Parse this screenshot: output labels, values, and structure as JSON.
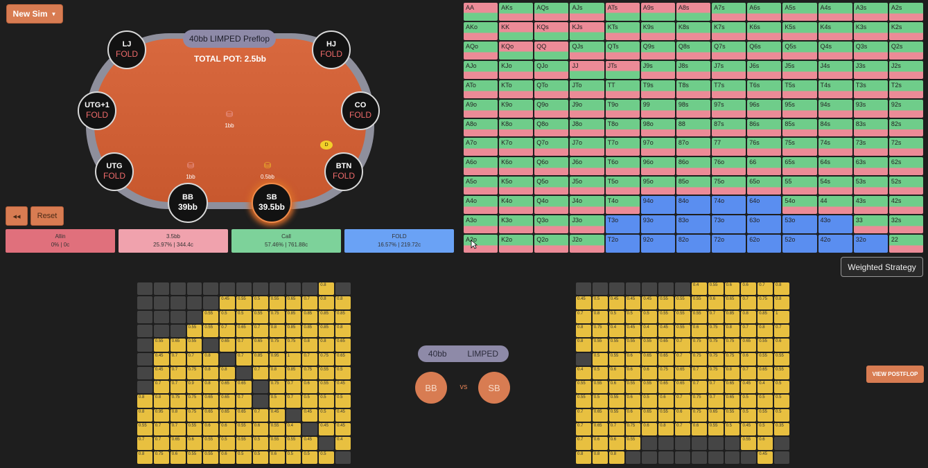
{
  "toolbar": {
    "new_sim_label": "New Sim",
    "rewind_label": "◂◂",
    "reset_label": "Reset"
  },
  "table": {
    "label": "40bb LIMPED Preflop",
    "pot": "TOTAL POT: 2.5bb",
    "seats": [
      {
        "id": "lj",
        "pos": "LJ",
        "action": "FOLD"
      },
      {
        "id": "hj",
        "pos": "HJ",
        "action": "FOLD"
      },
      {
        "id": "utg1",
        "pos": "UTG+1",
        "action": "FOLD"
      },
      {
        "id": "co",
        "pos": "CO",
        "action": "FOLD"
      },
      {
        "id": "utg",
        "pos": "UTG",
        "action": "FOLD"
      },
      {
        "id": "btn",
        "pos": "BTN",
        "action": "FOLD"
      },
      {
        "id": "bb",
        "pos": "BB",
        "stack": "39bb"
      },
      {
        "id": "sb",
        "pos": "SB",
        "stack": "39.5bb"
      }
    ],
    "chips": {
      "center": "1bb",
      "bb": "1bb",
      "sb": "0.5bb"
    },
    "dealer": "D"
  },
  "actions": [
    {
      "id": "allin",
      "label": "Allin",
      "stats": "0% | 0c",
      "color": "#e0707c"
    },
    {
      "id": "raise",
      "label": "3.5bb",
      "stats": "25.97% | 344.4c",
      "color": "#f0a2ad"
    },
    {
      "id": "call",
      "label": "Call",
      "stats": "57.46% | 761.88c",
      "color": "#7dd29a"
    },
    {
      "id": "fold",
      "label": "FOLD",
      "stats": "16.57% | 219.72c",
      "color": "#6aa2f5"
    }
  ],
  "colors": {
    "raise": "#ec8b97",
    "call": "#6fcd8a",
    "fold": "#5a8ef0"
  },
  "range_grid": {
    "rows": [
      [
        "AA",
        "AKs",
        "AQs",
        "AJs",
        "ATs",
        "A9s",
        "A8s",
        "A7s",
        "A6s",
        "A5s",
        "A4s",
        "A3s",
        "A2s"
      ],
      [
        "AKo",
        "KK",
        "KQs",
        "KJs",
        "KTs",
        "K9s",
        "K8s",
        "K7s",
        "K6s",
        "K5s",
        "K4s",
        "K3s",
        "K2s"
      ],
      [
        "AQo",
        "KQo",
        "QQ",
        "QJs",
        "QTs",
        "Q9s",
        "Q8s",
        "Q7s",
        "Q6s",
        "Q5s",
        "Q4s",
        "Q3s",
        "Q2s"
      ],
      [
        "AJo",
        "KJo",
        "QJo",
        "JJ",
        "JTs",
        "J9s",
        "J8s",
        "J7s",
        "J6s",
        "J5s",
        "J4s",
        "J3s",
        "J2s"
      ],
      [
        "ATo",
        "KTo",
        "QTo",
        "JTo",
        "TT",
        "T9s",
        "T8s",
        "T7s",
        "T6s",
        "T5s",
        "T4s",
        "T3s",
        "T2s"
      ],
      [
        "A9o",
        "K9o",
        "Q9o",
        "J9o",
        "T9o",
        "99",
        "98s",
        "97s",
        "96s",
        "95s",
        "94s",
        "93s",
        "92s"
      ],
      [
        "A8o",
        "K8o",
        "Q8o",
        "J8o",
        "T8o",
        "98o",
        "88",
        "87s",
        "86s",
        "85s",
        "84s",
        "83s",
        "82s"
      ],
      [
        "A7o",
        "K7o",
        "Q7o",
        "J7o",
        "T7o",
        "97o",
        "87o",
        "77",
        "76s",
        "75s",
        "74s",
        "73s",
        "72s"
      ],
      [
        "A6o",
        "K6o",
        "Q6o",
        "J6o",
        "T6o",
        "96o",
        "86o",
        "76o",
        "66",
        "65s",
        "64s",
        "63s",
        "62s"
      ],
      [
        "A5o",
        "K5o",
        "Q5o",
        "J5o",
        "T5o",
        "95o",
        "85o",
        "75o",
        "65o",
        "55",
        "54s",
        "53s",
        "52s"
      ],
      [
        "A4o",
        "K4o",
        "Q4o",
        "J4o",
        "T4o",
        "94o",
        "84o",
        "74o",
        "64o",
        "54o",
        "44",
        "43s",
        "42s"
      ],
      [
        "A3o",
        "K3o",
        "Q3o",
        "J3o",
        "T3o",
        "93o",
        "83o",
        "73o",
        "63o",
        "53o",
        "43o",
        "33",
        "32s"
      ],
      [
        "A2o",
        "K2o",
        "Q2o",
        "J2o",
        "T2o",
        "92o",
        "82o",
        "72o",
        "62o",
        "52o",
        "42o",
        "32o",
        "22"
      ]
    ],
    "styles": [
      [
        "R",
        "M",
        "M",
        "M",
        "R",
        "R",
        "R",
        "M",
        "M",
        "M",
        "M",
        "M",
        "M"
      ],
      [
        "M",
        "R",
        "R",
        "R",
        "M",
        "M",
        "M",
        "M",
        "M",
        "M",
        "M",
        "M",
        "M"
      ],
      [
        "M",
        "R",
        "R",
        "M",
        "M",
        "M",
        "M",
        "M",
        "M",
        "M",
        "M",
        "M",
        "M"
      ],
      [
        "M",
        "M",
        "M",
        "R",
        "R",
        "M",
        "M",
        "M",
        "M",
        "M",
        "M",
        "M",
        "M"
      ],
      [
        "M",
        "M",
        "M",
        "M",
        "M",
        "M",
        "M",
        "M",
        "M",
        "M",
        "M",
        "M",
        "M"
      ],
      [
        "M",
        "M",
        "M",
        "M",
        "M",
        "M",
        "M",
        "M",
        "M",
        "M",
        "M",
        "M",
        "M"
      ],
      [
        "M",
        "M",
        "M",
        "M",
        "M",
        "M",
        "M",
        "M",
        "M",
        "M",
        "M",
        "M",
        "M"
      ],
      [
        "M",
        "M",
        "M",
        "M",
        "M",
        "M",
        "M",
        "M",
        "M",
        "M",
        "M",
        "M",
        "M"
      ],
      [
        "M",
        "M",
        "M",
        "M",
        "M",
        "M",
        "M",
        "M",
        "M",
        "M",
        "M",
        "M",
        "M"
      ],
      [
        "M",
        "M",
        "M",
        "M",
        "M",
        "M",
        "M",
        "M",
        "M",
        "M",
        "M",
        "M",
        "M"
      ],
      [
        "M",
        "M",
        "M",
        "M",
        "M",
        "F",
        "F",
        "F",
        "F",
        "M",
        "M",
        "M",
        "M"
      ],
      [
        "M",
        "M",
        "M",
        "M",
        "F",
        "F",
        "F",
        "F",
        "F",
        "F",
        "F",
        "M",
        "M"
      ],
      [
        "M",
        "M",
        "M",
        "M",
        "F",
        "F",
        "F",
        "F",
        "F",
        "F",
        "F",
        "F",
        "M"
      ]
    ]
  },
  "weighted_strategy_label": "Weighted Strategy",
  "matchup": {
    "stack": "40bb",
    "type": "LIMPED",
    "left": "BB",
    "vs": "vs",
    "right": "SB"
  },
  "view_postflop_label": "VIEW POSTFLOP",
  "mini_left": {
    "cells": [
      [
        "",
        "",
        "",
        "",
        "",
        "",
        "",
        "",
        "",
        "",
        "",
        "0.8",
        ""
      ],
      [
        "",
        "",
        "",
        "",
        "",
        "0.45",
        "0.55",
        "0.5",
        "0.55",
        "0.65",
        "0.7",
        "0.8",
        "0.8"
      ],
      [
        "",
        "",
        "",
        "",
        "0.55",
        "0.5",
        "0.5",
        "0.55",
        "0.75",
        "0.85",
        "0.85",
        "0.85",
        "0.85"
      ],
      [
        "",
        "",
        "",
        "0.55",
        "0.55",
        "0.7",
        "0.65",
        "0.7",
        "0.8",
        "0.85",
        "0.85",
        "0.85",
        "0.8"
      ],
      [
        "",
        "0.55",
        "0.65",
        "0.55",
        "",
        "0.65",
        "0.7",
        "0.65",
        "0.75",
        "0.75",
        "0.8",
        "0.8",
        "0.65"
      ],
      [
        "",
        "0.45",
        "0.7",
        "0.7",
        "0.8",
        "",
        "0.7",
        "0.85",
        "0.95",
        "1",
        "0.7",
        "0.75",
        "0.65"
      ],
      [
        "",
        "0.45",
        "0.7",
        "0.75",
        "0.8",
        "0.8",
        "",
        "0.7",
        "0.8",
        "0.85",
        "0.75",
        "0.55",
        "0.5"
      ],
      [
        "",
        "0.7",
        "0.7",
        "0.9",
        "0.8",
        "0.65",
        "0.65",
        "",
        "0.75",
        "0.7",
        "0.6",
        "0.55",
        "0.45"
      ],
      [
        "0.8",
        "0.8",
        "0.75",
        "0.75",
        "0.65",
        "0.65",
        "0.7",
        "",
        "0.5",
        "0.7",
        "0.5",
        "0.5",
        "0.5"
      ],
      [
        "0.8",
        "0.95",
        "0.8",
        "0.75",
        "0.65",
        "0.65",
        "0.65",
        "0.7",
        "0.45",
        "",
        "0.45",
        "0.5",
        "0.45"
      ],
      [
        "0.55",
        "0.7",
        "0.7",
        "0.55",
        "0.6",
        "0.6",
        "0.55",
        "0.6",
        "0.55",
        "0.4",
        "",
        "0.45",
        "0.45"
      ],
      [
        "0.7",
        "0.7",
        "0.65",
        "0.6",
        "0.55",
        "0.5",
        "0.55",
        "0.5",
        "0.55",
        "0.55",
        "0.45",
        "",
        "0.4"
      ],
      [
        "0.8",
        "0.75",
        "0.6",
        "0.55",
        "0.55",
        "0.6",
        "0.5",
        "0.5",
        "0.6",
        "0.5",
        "0.5",
        "0.5",
        ""
      ]
    ]
  },
  "mini_right": {
    "cells": [
      [
        "",
        "",
        "",
        "",
        "",
        "",
        "",
        "0.4",
        "0.55",
        "0.6",
        "0.6",
        "0.7",
        "0.8"
      ],
      [
        "0.45",
        "0.5",
        "0.45",
        "0.45",
        "0.45",
        "0.55",
        "0.55",
        "0.55",
        "0.6",
        "0.65",
        "0.7",
        "0.75",
        "0.8"
      ],
      [
        "0.7",
        "0.8",
        "0.5",
        "0.5",
        "0.5",
        "0.55",
        "0.55",
        "0.55",
        "0.7",
        "0.85",
        "0.8",
        "0.85",
        "1"
      ],
      [
        "0.8",
        "0.75",
        "0.4",
        "0.45",
        "0.4",
        "0.45",
        "0.55",
        "0.6",
        "0.75",
        "0.8",
        "0.7",
        "0.8",
        "0.7"
      ],
      [
        "0.8",
        "0.55",
        "0.55",
        "0.55",
        "0.55",
        "0.65",
        "0.7",
        "0.75",
        "0.75",
        "0.75",
        "0.65",
        "0.55",
        "0.6"
      ],
      [
        "",
        "0.5",
        "0.55",
        "0.6",
        "0.65",
        "0.65",
        "0.7",
        "0.75",
        "0.75",
        "0.75",
        "0.6",
        "0.55",
        "0.55"
      ],
      [
        "0.4",
        "0.5",
        "0.6",
        "0.6",
        "0.6",
        "0.75",
        "0.65",
        "0.7",
        "0.75",
        "0.8",
        "0.7",
        "0.65",
        "0.55"
      ],
      [
        "0.55",
        "0.55",
        "0.6",
        "0.55",
        "0.55",
        "0.65",
        "0.65",
        "0.7",
        "0.7",
        "0.65",
        "0.45",
        "0.4",
        "0.5"
      ],
      [
        "0.55",
        "0.5",
        "0.55",
        "0.6",
        "0.5",
        "0.6",
        "0.7",
        "0.75",
        "0.7",
        "0.65",
        "0.5",
        "0.5",
        "0.5"
      ],
      [
        "0.7",
        "0.65",
        "0.55",
        "0.6",
        "0.65",
        "0.55",
        "0.6",
        "0.75",
        "0.65",
        "0.55",
        "0.5",
        "0.55",
        "0.5"
      ],
      [
        "0.7",
        "0.65",
        "0.7",
        "0.75",
        "0.6",
        "0.8",
        "0.7",
        "0.6",
        "0.55",
        "0.5",
        "0.45",
        "0.5",
        "0.35"
      ],
      [
        "0.7",
        "0.6",
        "0.6",
        "0.55",
        "",
        "",
        "",
        "",
        "",
        "",
        "0.55",
        "0.6",
        ""
      ],
      [
        "0.8",
        "0.8",
        "0.8",
        "",
        "",
        "",
        "",
        "",
        "",
        "",
        "",
        "0.45",
        ""
      ]
    ]
  }
}
